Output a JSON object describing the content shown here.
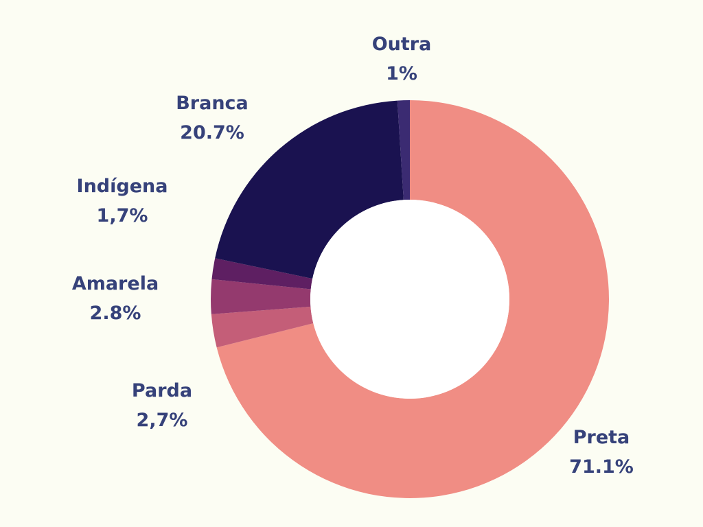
{
  "chart_data": {
    "type": "pie",
    "variant": "donut",
    "title": "",
    "slices": [
      {
        "label": "Preta",
        "value_text": "71.1%",
        "value": 71.1,
        "color": "#f08d84"
      },
      {
        "label": "Parda",
        "value_text": "2,7%",
        "value": 2.7,
        "color": "#c45e78"
      },
      {
        "label": "Amarela",
        "value_text": "2.8%",
        "value": 2.8,
        "color": "#943a6e"
      },
      {
        "label": "Indígena",
        "value_text": "1,7%",
        "value": 1.7,
        "color": "#5e1f62"
      },
      {
        "label": "Branca",
        "value_text": "20.7%",
        "value": 20.7,
        "color": "#1a1250"
      },
      {
        "label": "Outra",
        "value_text": "1%",
        "value": 1.0,
        "color": "#3b2b72"
      }
    ]
  },
  "colors": {
    "background": "#fcfdf3",
    "label_text": "#36427a",
    "hole": "#ffffff"
  }
}
